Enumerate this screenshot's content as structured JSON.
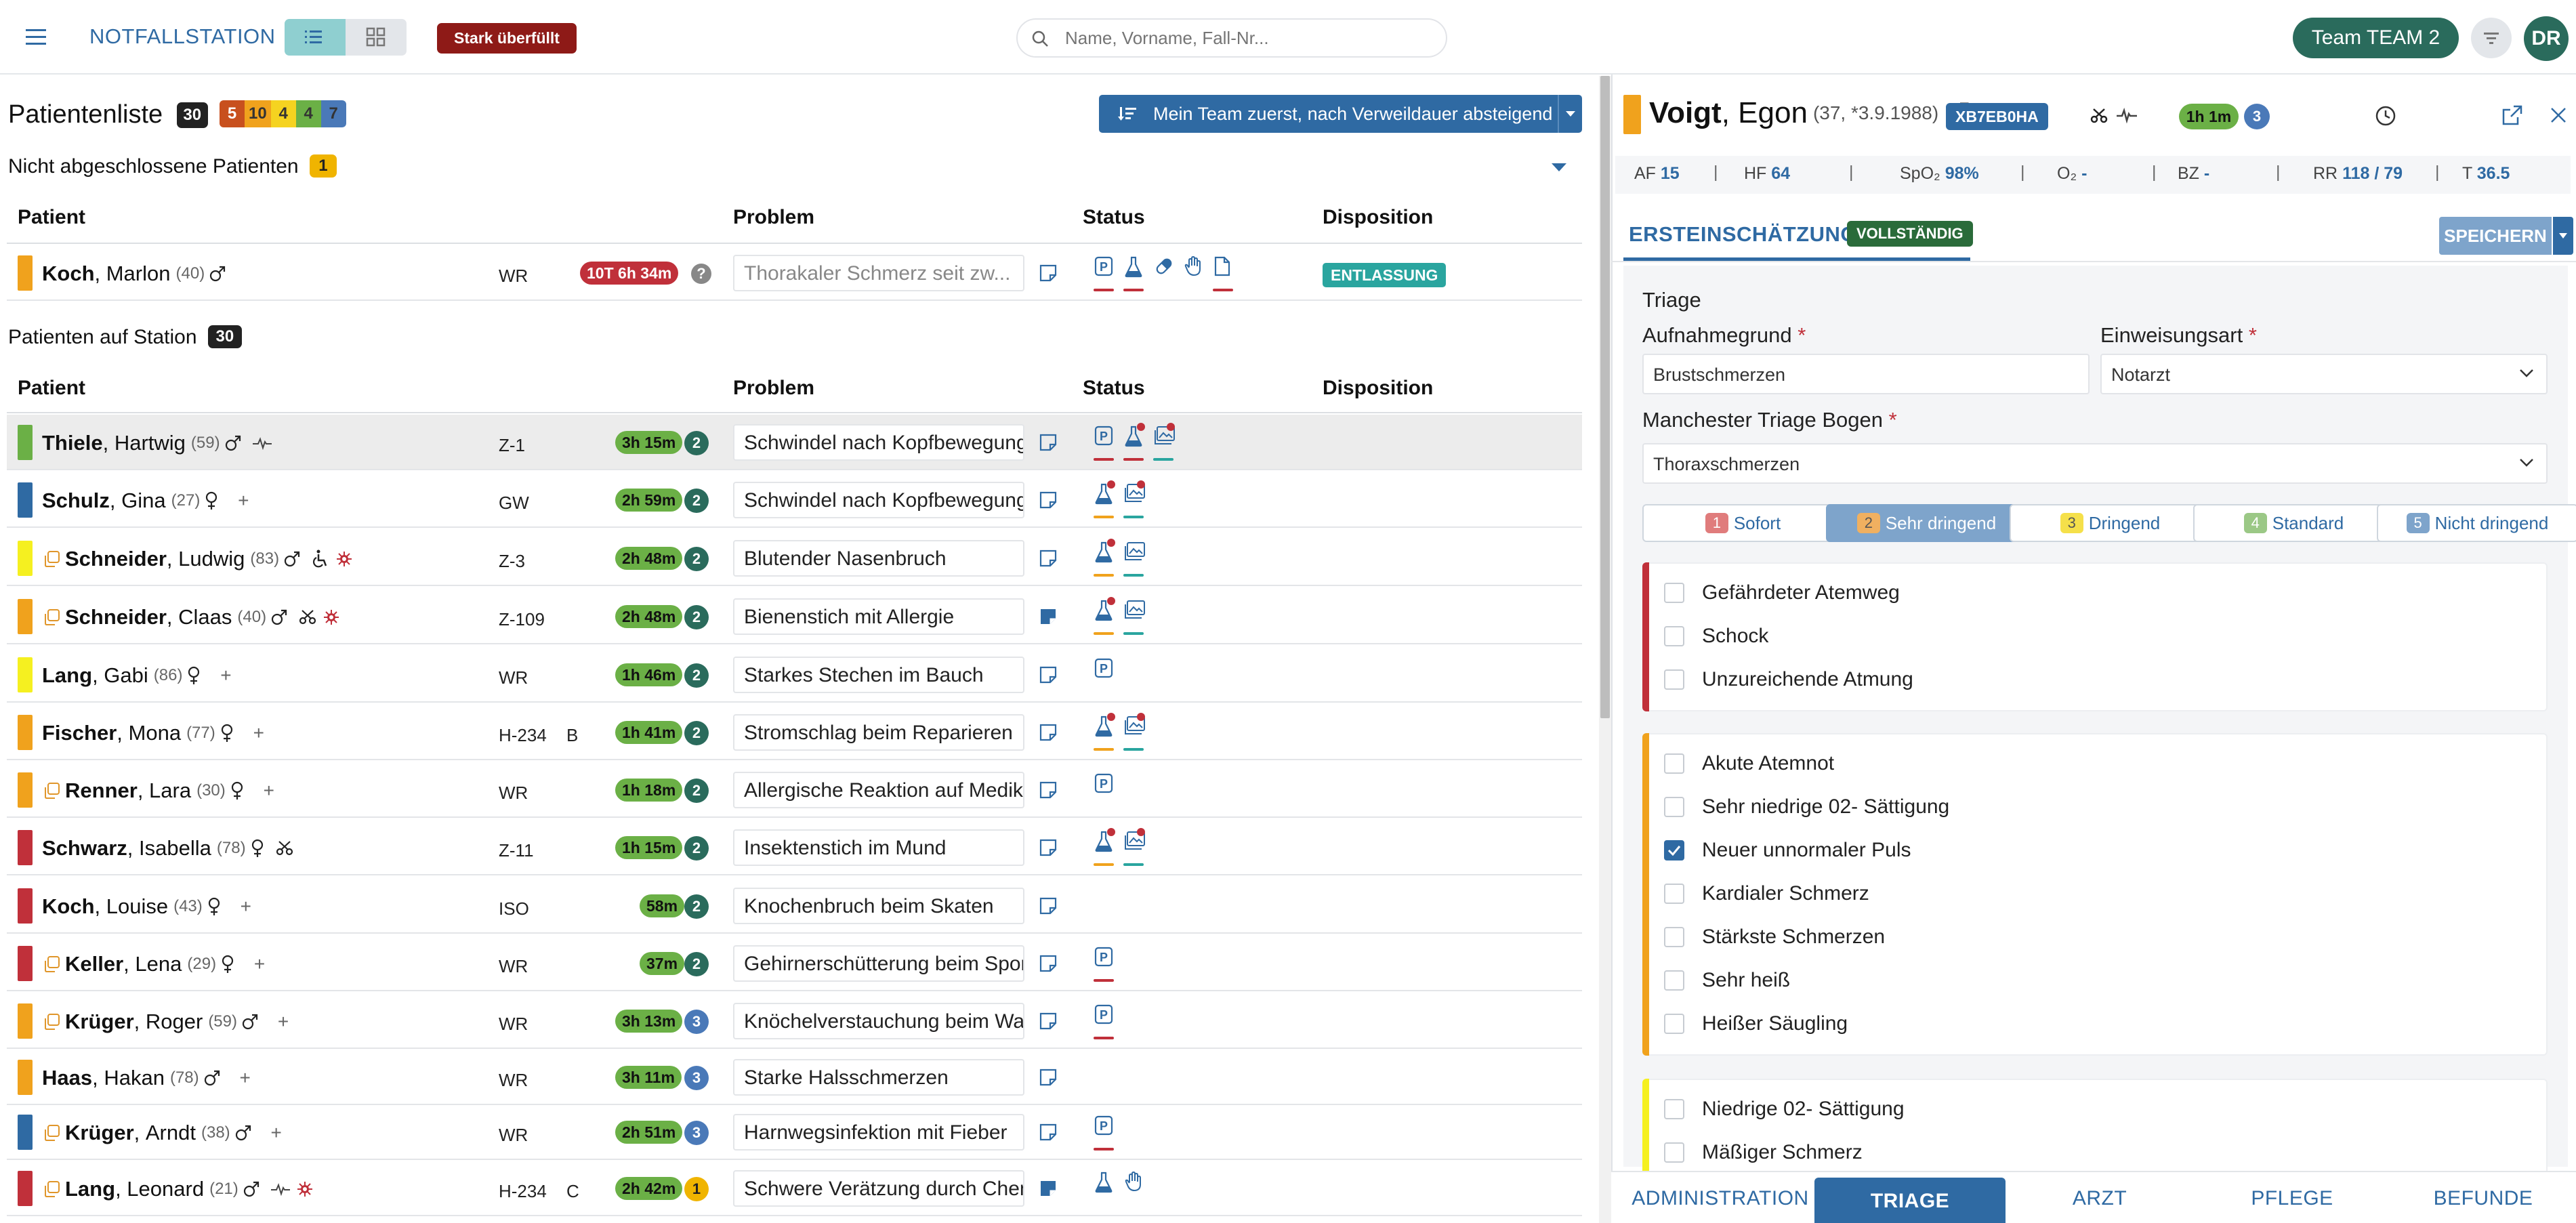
{
  "header": {
    "app_title": "NOTFALLSTATION",
    "overcrowded_badge": "Stark überfüllt",
    "search_placeholder": "Name, Vorname, Fall-Nr...",
    "team_button": "Team TEAM 2",
    "avatar_initials": "DR",
    "icons": [
      "menu-icon",
      "list-view-icon",
      "grid-view-icon",
      "search-icon",
      "filter-icon"
    ]
  },
  "left": {
    "title": "Patientenliste",
    "total_count": "30",
    "triage_counts": [
      {
        "value": "5",
        "color": "#c8501e"
      },
      {
        "value": "10",
        "color": "#f0a21d"
      },
      {
        "value": "4",
        "color": "#f5d320"
      },
      {
        "value": "4",
        "color": "#6bb046"
      },
      {
        "value": "7",
        "color": "#4a79b8"
      }
    ],
    "sort_button": "Mein Team zuerst, nach Verweildauer absteigend",
    "section_open": {
      "title": "Nicht abgeschlossene Patienten",
      "count": "1"
    },
    "section_station": {
      "title": "Patienten auf Station",
      "count": "30"
    },
    "columns": {
      "patient": "Patient",
      "problem": "Problem",
      "status": "Status",
      "disposition": "Disposition"
    },
    "open_patients": [
      {
        "last": "Koch",
        "first": "Marlon",
        "age": "(40)",
        "sex": "m",
        "triage": "#f0a21d",
        "room": "WR",
        "duration": "10T 6h 34m",
        "dur_color": "#c0303a",
        "circle": "?",
        "circle_color": "#888888",
        "problem": "Thorakaler Schmerz seit zw...",
        "problem_gray": true,
        "disposition": "ENTLASSUNG",
        "status": [
          {
            "icon": "p",
            "line": "#c0303a"
          },
          {
            "icon": "flask",
            "line": "#c0303a"
          },
          {
            "icon": "pill",
            "line": ""
          },
          {
            "icon": "hand",
            "line": ""
          },
          {
            "icon": "doc",
            "line": "#c0303a"
          }
        ]
      }
    ],
    "patients": [
      {
        "last": "Thiele",
        "first": "Hartwig",
        "age": "(59)",
        "sex": "m",
        "extras": [
          "pulse"
        ],
        "triage": "#6bb046",
        "room": "Z-1",
        "bed": "",
        "duration": "3h 15m",
        "circle": "2",
        "circle_color": "#2a6b5c",
        "problem": "Schwindel nach Kopfbewegung",
        "note_filled": false,
        "selected": true,
        "status": [
          {
            "icon": "p",
            "line": "#c0303a",
            "dot": false
          },
          {
            "icon": "flask",
            "line": "#c0303a",
            "dot": true
          },
          {
            "icon": "img",
            "line": "#2aa59f",
            "dot": true
          }
        ]
      },
      {
        "last": "Schulz",
        "first": "Gina",
        "age": "(27)",
        "sex": "f",
        "extras": [
          "plus"
        ],
        "triage": "#2f6aa3",
        "room": "GW",
        "bed": "",
        "duration": "2h 59m",
        "circle": "2",
        "circle_color": "#2a6b5c",
        "problem": "Schwindel nach Kopfbewegung",
        "note_filled": false,
        "status": [
          {
            "icon": "flask",
            "line": "#f0a21d",
            "dot": true
          },
          {
            "icon": "img",
            "line": "#2aa59f",
            "dot": true
          }
        ]
      },
      {
        "last": "Schneider",
        "first": "Ludwig",
        "age": "(83)",
        "sex": "m",
        "extras": [
          "wheelchair",
          "virus"
        ],
        "copy": true,
        "triage": "#f5f020",
        "room": "Z-3",
        "bed": "",
        "duration": "2h 48m",
        "circle": "2",
        "circle_color": "#2a6b5c",
        "problem": "Blutender Nasenbruch",
        "note_filled": false,
        "status": [
          {
            "icon": "flask",
            "line": "#f0a21d",
            "dot": true
          },
          {
            "icon": "img",
            "line": "#2aa59f",
            "dot": false
          }
        ]
      },
      {
        "last": "Schneider",
        "first": "Claas",
        "age": "(40)",
        "sex": "m",
        "extras": [
          "scissors",
          "virus"
        ],
        "copy": true,
        "triage": "#f0a21d",
        "room": "Z-109",
        "bed": "",
        "duration": "2h 48m",
        "circle": "2",
        "circle_color": "#2a6b5c",
        "problem": "Bienenstich mit Allergie",
        "note_filled": true,
        "status": [
          {
            "icon": "flask",
            "line": "#f0a21d",
            "dot": true
          },
          {
            "icon": "img",
            "line": "#2aa59f",
            "dot": false
          }
        ]
      },
      {
        "last": "Lang",
        "first": "Gabi",
        "age": "(86)",
        "sex": "f",
        "extras": [
          "plus"
        ],
        "triage": "#f5f020",
        "room": "WR",
        "bed": "",
        "duration": "1h 46m",
        "circle": "2",
        "circle_color": "#2a6b5c",
        "problem": "Starkes Stechen im Bauch",
        "note_filled": false,
        "status": [
          {
            "icon": "p",
            "line": "",
            "dot": false
          }
        ]
      },
      {
        "last": "Fischer",
        "first": "Mona",
        "age": "(77)",
        "sex": "f",
        "extras": [
          "plus"
        ],
        "triage": "#f0a21d",
        "room": "H-234",
        "bed": "B",
        "duration": "1h 41m",
        "circle": "2",
        "circle_color": "#2a6b5c",
        "problem": "Stromschlag beim Reparieren",
        "note_filled": false,
        "status": [
          {
            "icon": "flask",
            "line": "#f0a21d",
            "dot": true
          },
          {
            "icon": "img",
            "line": "#2aa59f",
            "dot": true
          }
        ]
      },
      {
        "last": "Renner",
        "first": "Lara",
        "age": "(30)",
        "sex": "f",
        "extras": [
          "plus"
        ],
        "copy": true,
        "triage": "#f0a21d",
        "room": "WR",
        "bed": "",
        "duration": "1h 18m",
        "circle": "2",
        "circle_color": "#2a6b5c",
        "problem": "Allergische Reaktion auf Medikament",
        "note_filled": false,
        "status": [
          {
            "icon": "p",
            "line": "",
            "dot": false
          }
        ]
      },
      {
        "last": "Schwarz",
        "first": "Isabella",
        "age": "(78)",
        "sex": "f",
        "extras": [
          "scissors"
        ],
        "triage": "#c0303a",
        "room": "Z-11",
        "bed": "",
        "duration": "1h 15m",
        "circle": "2",
        "circle_color": "#2a6b5c",
        "problem": "Insektenstich im Mund",
        "note_filled": false,
        "status": [
          {
            "icon": "flask",
            "line": "#f0a21d",
            "dot": true
          },
          {
            "icon": "img",
            "line": "#2aa59f",
            "dot": true
          }
        ]
      },
      {
        "last": "Koch",
        "first": "Louise",
        "age": "(43)",
        "sex": "f",
        "extras": [
          "plus"
        ],
        "triage": "#c0303a",
        "room": "ISO",
        "bed": "",
        "duration": "58m",
        "circle": "2",
        "circle_color": "#2a6b5c",
        "problem": "Knochenbruch beim Skaten",
        "note_filled": false,
        "status": []
      },
      {
        "last": "Keller",
        "first": "Lena",
        "age": "(29)",
        "sex": "f",
        "extras": [
          "plus"
        ],
        "copy": true,
        "triage": "#c0303a",
        "room": "WR",
        "bed": "",
        "duration": "37m",
        "circle": "2",
        "circle_color": "#2a6b5c",
        "problem": "Gehirnerschütterung beim Sport",
        "note_filled": false,
        "status": [
          {
            "icon": "p",
            "line": "#c0303a",
            "dot": false
          }
        ]
      },
      {
        "last": "Krüger",
        "first": "Roger",
        "age": "(59)",
        "sex": "m",
        "extras": [
          "plus"
        ],
        "copy": true,
        "triage": "#f0a21d",
        "room": "WR",
        "bed": "",
        "duration": "3h 13m",
        "circle": "3",
        "circle_color": "#4a79b8",
        "problem": "Knöchelverstauchung beim Wandern",
        "note_filled": false,
        "status": [
          {
            "icon": "p",
            "line": "#c0303a",
            "dot": false
          }
        ]
      },
      {
        "last": "Haas",
        "first": "Hakan",
        "age": "(78)",
        "sex": "m",
        "extras": [
          "plus"
        ],
        "triage": "#f0a21d",
        "room": "WR",
        "bed": "",
        "duration": "3h 11m",
        "circle": "3",
        "circle_color": "#4a79b8",
        "problem": "Starke Halsschmerzen",
        "note_filled": false,
        "status": []
      },
      {
        "last": "Krüger",
        "first": "Arndt",
        "age": "(38)",
        "sex": "m",
        "extras": [
          "plus"
        ],
        "copy": true,
        "triage": "#2f6aa3",
        "room": "WR",
        "bed": "",
        "duration": "2h 51m",
        "circle": "3",
        "circle_color": "#4a79b8",
        "problem": "Harnwegsinfektion mit Fieber",
        "note_filled": false,
        "status": [
          {
            "icon": "p",
            "line": "#c0303a",
            "dot": false
          }
        ]
      },
      {
        "last": "Lang",
        "first": "Leonard",
        "age": "(21)",
        "sex": "m",
        "extras": [
          "pulse",
          "virus"
        ],
        "copy": true,
        "triage": "#c0303a",
        "room": "H-234",
        "bed": "C",
        "duration": "2h 42m",
        "circle": "1",
        "circle_color": "#f0b400",
        "problem": "Schwere Verätzung durch Chemikalien",
        "note_filled": true,
        "status": [
          {
            "icon": "flask",
            "line": "",
            "dot": false
          },
          {
            "icon": "hand",
            "line": "",
            "dot": false
          }
        ]
      }
    ]
  },
  "right": {
    "patient_last": "Voigt",
    "patient_first": "Egon",
    "patient_age": "(37, *3.9.1988)",
    "fall_nr": "XB7EB0HA",
    "duration": "1h 1m",
    "circle": "3",
    "vitals": [
      {
        "label": "AF",
        "value": "15"
      },
      {
        "label": "HF",
        "value": "64"
      },
      {
        "label": "SpO₂",
        "value": "98%"
      },
      {
        "label": "O₂",
        "value": "-"
      },
      {
        "label": "BZ",
        "value": "-"
      },
      {
        "label": "RR",
        "value": "118 / 79"
      },
      {
        "label": "T",
        "value": "36.5"
      }
    ],
    "tab_title": "ERSTEINSCHÄTZUNG",
    "complete_badge": "VOLLSTÄNDIG",
    "save_button": "SPEICHERN",
    "form": {
      "section": "Triage",
      "aufnahme_label": "Aufnahmegrund",
      "aufnahme_value": "Brustschmerzen",
      "einweisung_label": "Einweisungsart",
      "einweisung_value": "Notarzt",
      "mtb_label": "Manchester Triage Bogen",
      "mtb_value": "Thoraxschmerzen",
      "required_mark": "*"
    },
    "triage_buttons": [
      {
        "num": "1",
        "label": "Sofort",
        "color": "#e07c7c",
        "active": false
      },
      {
        "num": "2",
        "label": "Sehr dringend",
        "color": "#f0b060",
        "active": true
      },
      {
        "num": "3",
        "label": "Dringend",
        "color": "#f5e04a",
        "active": false
      },
      {
        "num": "4",
        "label": "Standard",
        "color": "#9bc886",
        "active": false
      },
      {
        "num": "5",
        "label": "Nicht dringend",
        "color": "#7ea4cb",
        "active": false
      }
    ],
    "groups": [
      {
        "color": "#c0303a",
        "items": [
          {
            "label": "Gefährdeter Atemweg",
            "checked": false
          },
          {
            "label": "Schock",
            "checked": false
          },
          {
            "label": "Unzureichende Atmung",
            "checked": false
          }
        ]
      },
      {
        "color": "#f0a21d",
        "items": [
          {
            "label": "Akute Atemnot",
            "checked": false
          },
          {
            "label": "Sehr niedrige 02- Sättigung",
            "checked": false
          },
          {
            "label": "Neuer unnormaler Puls",
            "checked": true
          },
          {
            "label": "Kardialer Schmerz",
            "checked": false
          },
          {
            "label": "Stärkste Schmerzen",
            "checked": false
          },
          {
            "label": "Sehr heiß",
            "checked": false
          },
          {
            "label": "Heißer Säugling",
            "checked": false
          }
        ]
      },
      {
        "color": "#f5f020",
        "items": [
          {
            "label": "Niedrige 02- Sättigung",
            "checked": false
          },
          {
            "label": "Mäßiger Schmerz",
            "checked": false
          }
        ]
      }
    ],
    "bottom_tabs": [
      {
        "label": "ADMINISTRATION",
        "active": false
      },
      {
        "label": "TRIAGE",
        "active": true
      },
      {
        "label": "ARZT",
        "active": false
      },
      {
        "label": "PFLEGE",
        "active": false
      },
      {
        "label": "BEFUNDE",
        "active": false
      }
    ]
  }
}
